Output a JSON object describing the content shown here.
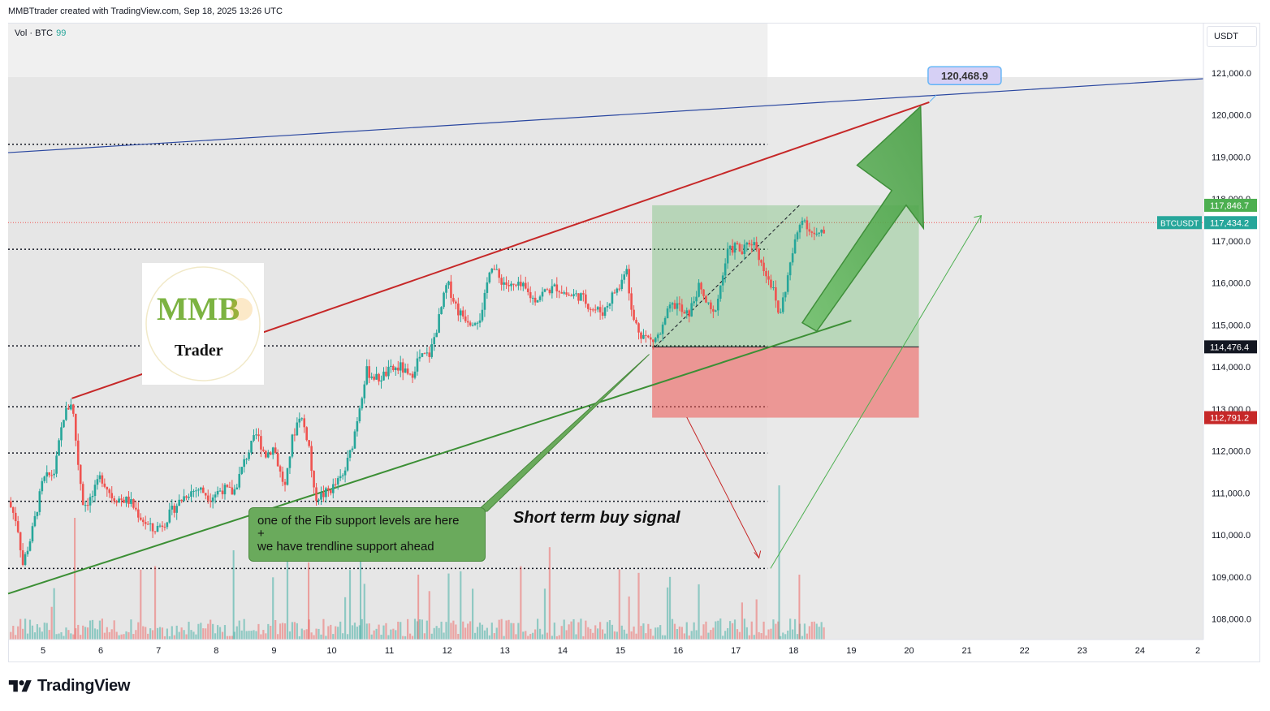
{
  "header": {
    "created_by": "MMBTtrader created with TradingView.com, Sep 18, 2025 13:26 UTC"
  },
  "volume_legend": {
    "label": "Vol · BTC",
    "value": "99"
  },
  "currency": "USDT",
  "footer": {
    "brand": "TradingView"
  },
  "logo": {
    "text_top": "MMB",
    "text_bottom": "Trader"
  },
  "colors": {
    "up": "#26a69a",
    "down": "#ef5350",
    "channel_red": "#c62828",
    "trend_green": "#3c8f35",
    "blue_line": "#2a47a0",
    "accent_green": "#4caf50"
  },
  "annotations": {
    "note_lines": [
      "one of the Fib support levels are here",
      "+",
      "we have trendline support ahead"
    ],
    "signal": "Short term buy signal",
    "target_label": "120,468.9"
  },
  "chart_data": {
    "type": "candlestick",
    "symbol": "BTCUSDT",
    "quote": "USDT",
    "x_ticks": [
      "5",
      "6",
      "7",
      "8",
      "9",
      "10",
      "11",
      "12",
      "13",
      "14",
      "15",
      "16",
      "17",
      "18",
      "19",
      "20",
      "21",
      "22",
      "23",
      "24",
      "2"
    ],
    "x_range_days": [
      4.4,
      25
    ],
    "ylim": [
      107500,
      122000
    ],
    "y_ticks": [
      108000,
      109000,
      110000,
      111000,
      112000,
      113000,
      114000,
      115000,
      116000,
      117000,
      118000,
      119000,
      120000,
      121000
    ],
    "y_tick_labels": [
      "108,000.0",
      "109,000.0",
      "110,000.0",
      "111,000.0",
      "112,000.0",
      "113,000.0",
      "114,000.0",
      "115,000.0",
      "116,000.0",
      "117,000.0",
      "118,000.0",
      "119,000.0",
      "120,000.0",
      "121,000.0"
    ],
    "price_path": [
      [
        4.4,
        110800
      ],
      [
        4.55,
        110300
      ],
      [
        4.65,
        109300
      ],
      [
        4.8,
        110000
      ],
      [
        5.0,
        111300
      ],
      [
        5.2,
        111500
      ],
      [
        5.35,
        112800
      ],
      [
        5.5,
        113200
      ],
      [
        5.6,
        111800
      ],
      [
        5.7,
        110700
      ],
      [
        5.85,
        110900
      ],
      [
        6.0,
        111400
      ],
      [
        6.2,
        110900
      ],
      [
        6.5,
        110800
      ],
      [
        6.7,
        110400
      ],
      [
        6.9,
        110100
      ],
      [
        7.1,
        110300
      ],
      [
        7.3,
        110700
      ],
      [
        7.5,
        111000
      ],
      [
        7.7,
        111100
      ],
      [
        7.9,
        110900
      ],
      [
        8.1,
        111100
      ],
      [
        8.3,
        111000
      ],
      [
        8.5,
        111800
      ],
      [
        8.7,
        112400
      ],
      [
        8.85,
        111900
      ],
      [
        9.0,
        112100
      ],
      [
        9.1,
        111500
      ],
      [
        9.2,
        111100
      ],
      [
        9.3,
        112200
      ],
      [
        9.45,
        112900
      ],
      [
        9.6,
        112200
      ],
      [
        9.7,
        110900
      ],
      [
        9.85,
        110950
      ],
      [
        10.0,
        111100
      ],
      [
        10.2,
        111400
      ],
      [
        10.35,
        112100
      ],
      [
        10.5,
        113200
      ],
      [
        10.6,
        113900
      ],
      [
        10.8,
        113700
      ],
      [
        11.0,
        113900
      ],
      [
        11.2,
        114000
      ],
      [
        11.35,
        113700
      ],
      [
        11.5,
        114200
      ],
      [
        11.7,
        114300
      ],
      [
        11.85,
        115100
      ],
      [
        12.0,
        116000
      ],
      [
        12.2,
        115300
      ],
      [
        12.4,
        115100
      ],
      [
        12.6,
        115200
      ],
      [
        12.75,
        116500
      ],
      [
        12.9,
        116100
      ],
      [
        13.1,
        115900
      ],
      [
        13.3,
        115900
      ],
      [
        13.5,
        115600
      ],
      [
        13.7,
        115800
      ],
      [
        13.9,
        115900
      ],
      [
        14.1,
        115700
      ],
      [
        14.3,
        115700
      ],
      [
        14.5,
        115400
      ],
      [
        14.7,
        115300
      ],
      [
        14.9,
        115800
      ],
      [
        15.0,
        115900
      ],
      [
        15.1,
        116500
      ],
      [
        15.2,
        115200
      ],
      [
        15.35,
        114800
      ],
      [
        15.55,
        114600
      ],
      [
        15.7,
        114800
      ],
      [
        15.85,
        115400
      ],
      [
        16.0,
        115500
      ],
      [
        16.1,
        115200
      ],
      [
        16.2,
        115300
      ],
      [
        16.35,
        115900
      ],
      [
        16.5,
        115500
      ],
      [
        16.6,
        115200
      ],
      [
        16.7,
        115700
      ],
      [
        16.85,
        116700
      ],
      [
        17.0,
        116900
      ],
      [
        17.1,
        116700
      ],
      [
        17.25,
        117000
      ],
      [
        17.35,
        116900
      ],
      [
        17.45,
        116400
      ],
      [
        17.55,
        116200
      ],
      [
        17.65,
        115800
      ],
      [
        17.75,
        115200
      ],
      [
        17.85,
        115800
      ],
      [
        17.95,
        116500
      ],
      [
        18.05,
        117100
      ],
      [
        18.15,
        117600
      ],
      [
        18.3,
        117200
      ],
      [
        18.4,
        117100
      ],
      [
        18.55,
        117200
      ]
    ],
    "horizontal_levels": [
      119300,
      116800,
      114500,
      113050,
      111950,
      110800,
      109200
    ],
    "current_price": {
      "label": "117,434.2",
      "value": 117434.2
    },
    "price_labels": [
      {
        "text": "117,846.7",
        "value": 117846.7,
        "kind": "target"
      },
      {
        "text": "114,476.4",
        "value": 114476.4,
        "kind": "entry"
      },
      {
        "text": "112,791.2",
        "value": 112791.2,
        "kind": "stop"
      }
    ],
    "target_value": 120468.9
  }
}
